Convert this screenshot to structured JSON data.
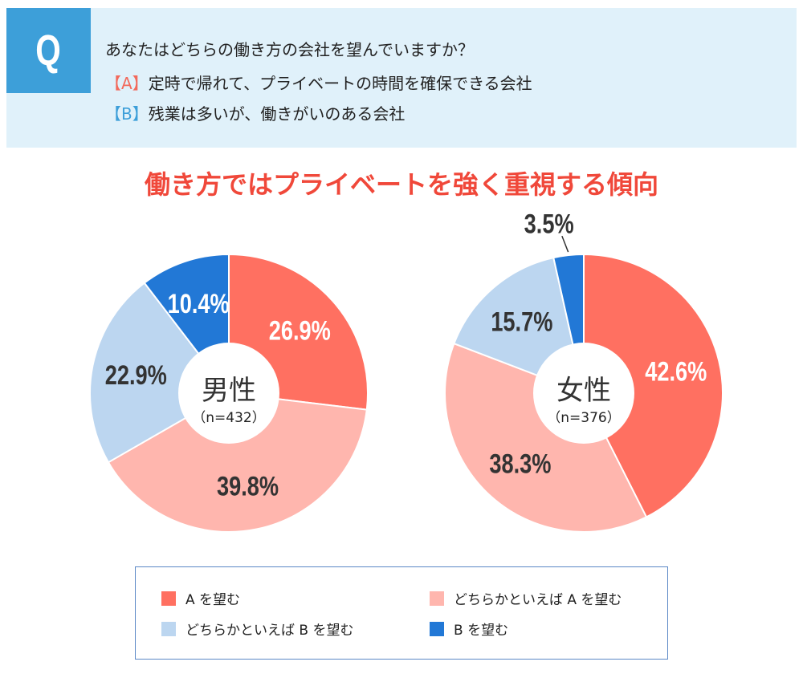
{
  "question": {
    "q_mark": "Q",
    "text": "あなたはどちらの働き方の会社を望んでいますか？",
    "option_a_key": "【A】",
    "option_a": "定時で帰れて、プライベートの時間を確保できる会社",
    "option_b_key": "【B】",
    "option_b": "残業は多いが、働きがいのある会社"
  },
  "colors": {
    "a": "#ff7061",
    "lean_a": "#ffb6ae",
    "lean_b": "#bcd6f0",
    "b": "#2278d6",
    "title": "#f0483a"
  },
  "chart_data": [
    {
      "type": "pie",
      "title": "男性",
      "subtitle": "（n=432）",
      "categories": [
        "A を望む",
        "どちらかといえば A を望む",
        "どちらかといえば B を望む",
        "B を望む"
      ],
      "values": [
        26.9,
        39.8,
        22.9,
        10.4
      ],
      "labels": [
        "26.9%",
        "39.8%",
        "22.9%",
        "10.4%"
      ]
    },
    {
      "type": "pie",
      "title": "女性",
      "subtitle": "（n=376）",
      "categories": [
        "A を望む",
        "どちらかといえば A を望む",
        "どちらかといえば B を望む",
        "B を望む"
      ],
      "values": [
        42.6,
        38.3,
        15.7,
        3.5
      ],
      "labels": [
        "42.6%",
        "38.3%",
        "15.7%",
        "3.5%"
      ]
    }
  ],
  "headline": "働き方ではプライベートを強く重視する傾向",
  "legend": [
    "A を望む",
    "どちらかといえば A を望む",
    "どちらかといえば B を望む",
    "B を望む"
  ]
}
